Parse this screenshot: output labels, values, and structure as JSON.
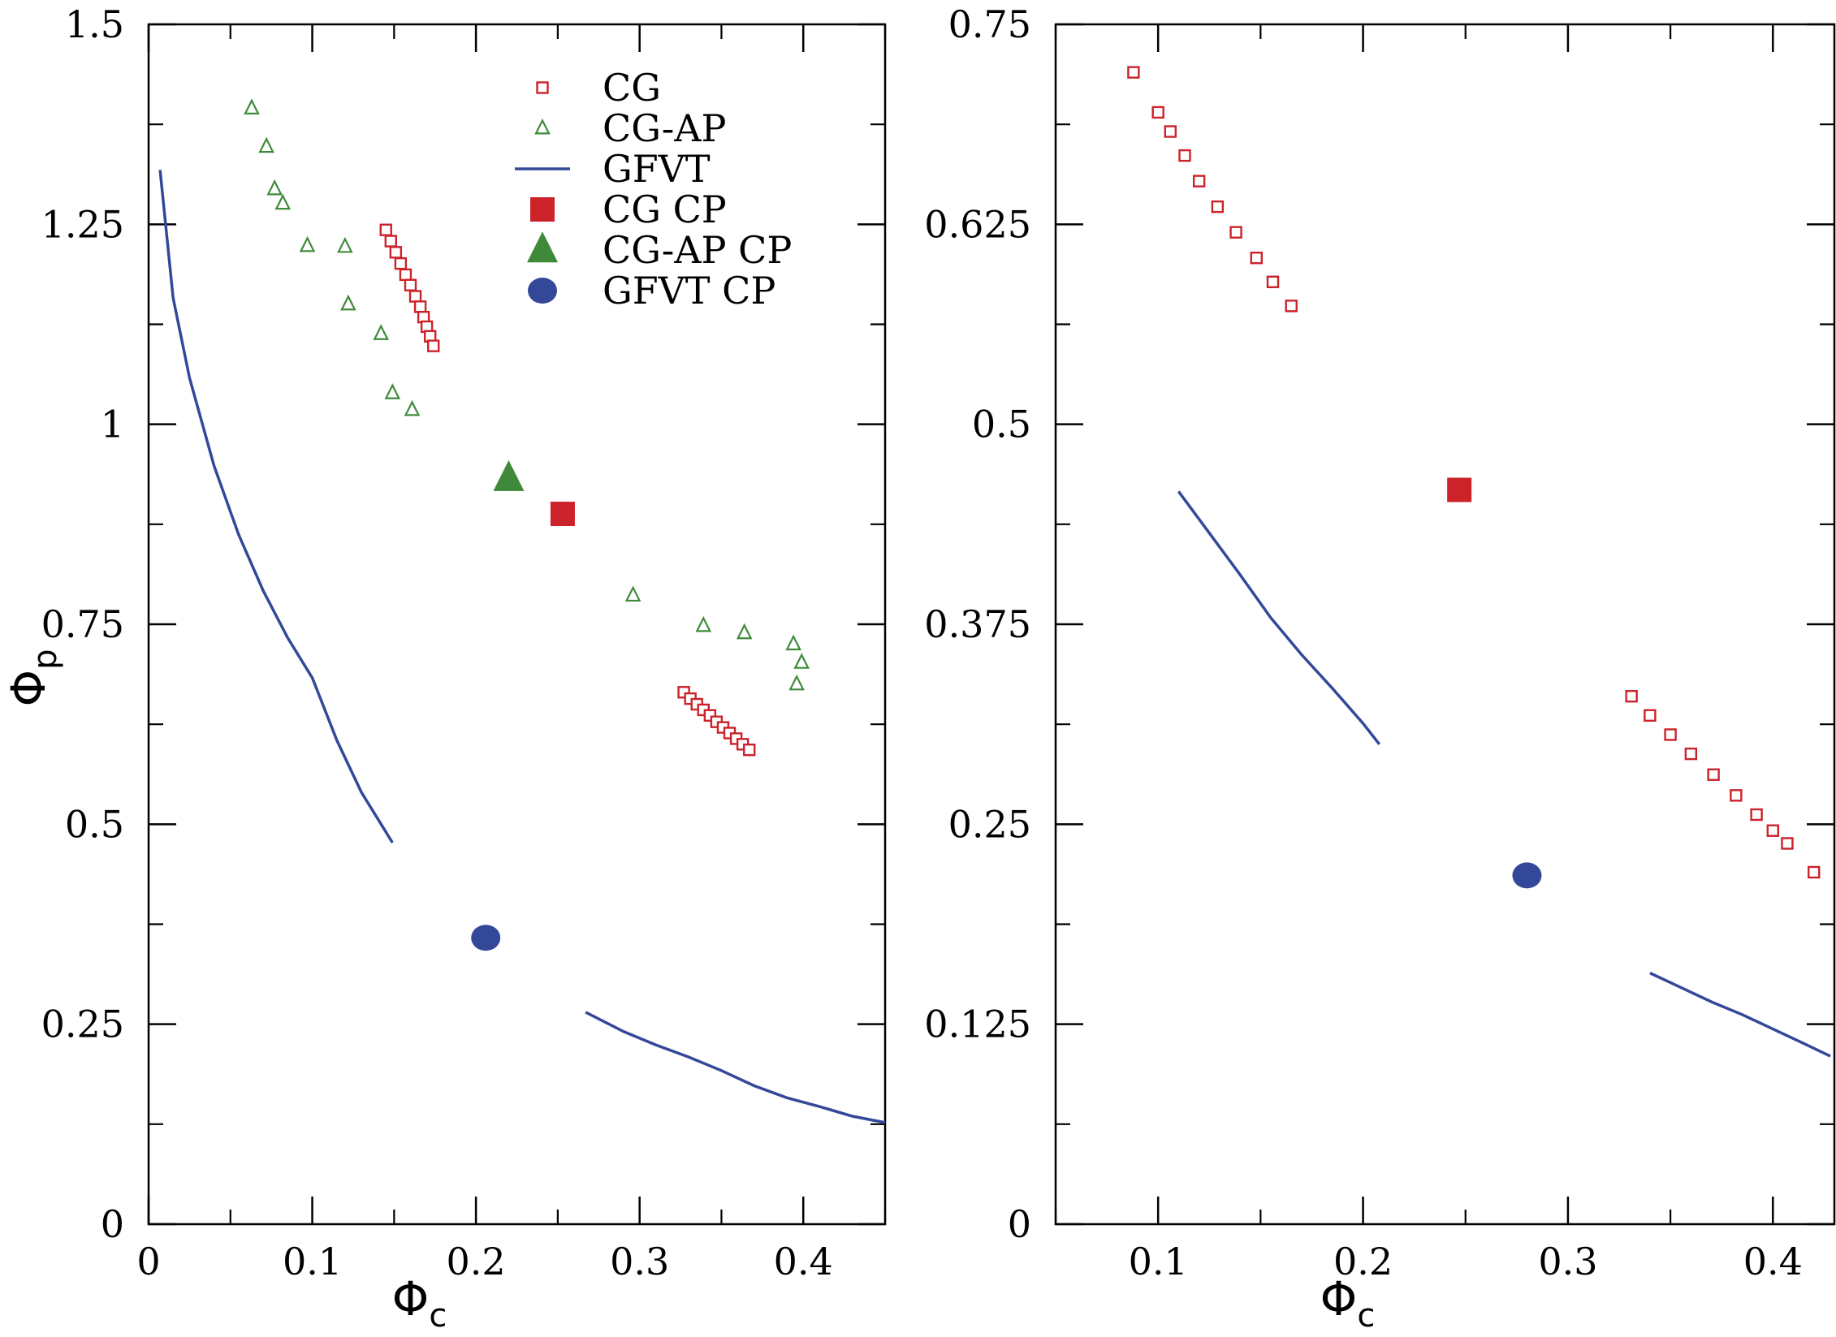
{
  "chart_data": [
    {
      "type": "scatter",
      "title": "",
      "xlabel": "Φc",
      "ylabel": "Φp",
      "xlim": [
        0,
        0.45
      ],
      "ylim": [
        0,
        1.5
      ],
      "xticks": [
        0,
        0.1,
        0.2,
        0.3,
        0.4
      ],
      "xtick_labels": [
        "0",
        "0.1",
        "0.2",
        "0.3",
        "0.4"
      ],
      "yticks": [
        0,
        0.25,
        0.5,
        0.75,
        1,
        1.25,
        1.5
      ],
      "ytick_labels": [
        "0",
        "0.25",
        "0.5",
        "0.75",
        "1",
        "1.25",
        "1.5"
      ],
      "legend": {
        "position": "top-center",
        "entries": [
          {
            "label": "CG",
            "marker": "open-square",
            "color": "#cc2229"
          },
          {
            "label": "CG-AP",
            "marker": "open-triangle",
            "color": "#3f8a3a"
          },
          {
            "label": "GFVT",
            "marker": "line",
            "color": "#34489a"
          },
          {
            "label": "CG CP",
            "marker": "filled-square",
            "color": "#cc2229"
          },
          {
            "label": "CG-AP CP",
            "marker": "filled-triangle",
            "color": "#3f8a3a"
          },
          {
            "label": "GFVT CP",
            "marker": "filled-circle",
            "color": "#34489a"
          }
        ]
      },
      "series": [
        {
          "name": "CG",
          "marker": "open-square",
          "color": "#cc2229",
          "points": [
            [
              0.145,
              1.243
            ],
            [
              0.148,
              1.229
            ],
            [
              0.151,
              1.215
            ],
            [
              0.154,
              1.201
            ],
            [
              0.157,
              1.187
            ],
            [
              0.16,
              1.174
            ],
            [
              0.163,
              1.16
            ],
            [
              0.166,
              1.147
            ],
            [
              0.168,
              1.134
            ],
            [
              0.17,
              1.122
            ],
            [
              0.172,
              1.11
            ],
            [
              0.174,
              1.098
            ],
            [
              0.327,
              0.665
            ],
            [
              0.331,
              0.657
            ],
            [
              0.335,
              0.65
            ],
            [
              0.339,
              0.643
            ],
            [
              0.343,
              0.636
            ],
            [
              0.347,
              0.628
            ],
            [
              0.351,
              0.621
            ],
            [
              0.355,
              0.614
            ],
            [
              0.359,
              0.607
            ],
            [
              0.363,
              0.6
            ],
            [
              0.367,
              0.593
            ]
          ]
        },
        {
          "name": "CG-AP",
          "marker": "open-triangle",
          "color": "#3f8a3a",
          "points": [
            [
              0.063,
              1.395
            ],
            [
              0.072,
              1.347
            ],
            [
              0.077,
              1.294
            ],
            [
              0.082,
              1.276
            ],
            [
              0.097,
              1.223
            ],
            [
              0.12,
              1.222
            ],
            [
              0.122,
              1.15
            ],
            [
              0.142,
              1.113
            ],
            [
              0.149,
              1.039
            ],
            [
              0.161,
              1.018
            ],
            [
              0.296,
              0.786
            ],
            [
              0.339,
              0.748
            ],
            [
              0.364,
              0.739
            ],
            [
              0.394,
              0.725
            ],
            [
              0.399,
              0.702
            ],
            [
              0.396,
              0.675
            ]
          ]
        },
        {
          "name": "GFVT",
          "marker": "line",
          "color": "#34489a",
          "segments": [
            [
              [
                0.007,
                1.318
              ],
              [
                0.015,
                1.158
              ],
              [
                0.025,
                1.058
              ],
              [
                0.04,
                0.948
              ],
              [
                0.055,
                0.862
              ],
              [
                0.07,
                0.792
              ],
              [
                0.085,
                0.733
              ],
              [
                0.1,
                0.683
              ],
              [
                0.115,
                0.605
              ],
              [
                0.13,
                0.54
              ],
              [
                0.149,
                0.477
              ]
            ],
            [
              [
                0.267,
                0.265
              ],
              [
                0.29,
                0.241
              ],
              [
                0.31,
                0.224
              ],
              [
                0.33,
                0.209
              ],
              [
                0.35,
                0.192
              ],
              [
                0.37,
                0.173
              ],
              [
                0.39,
                0.158
              ],
              [
                0.41,
                0.147
              ],
              [
                0.43,
                0.135
              ],
              [
                0.45,
                0.127
              ]
            ]
          ]
        },
        {
          "name": "CG CP",
          "marker": "filled-square",
          "color": "#cc2229",
          "points": [
            [
              0.253,
              0.888
            ]
          ]
        },
        {
          "name": "CG-AP CP",
          "marker": "filled-triangle",
          "color": "#3f8a3a",
          "points": [
            [
              0.22,
              0.932
            ]
          ]
        },
        {
          "name": "GFVT CP",
          "marker": "filled-circle",
          "color": "#34489a",
          "points": [
            [
              0.206,
              0.358
            ]
          ]
        }
      ]
    },
    {
      "type": "scatter",
      "title": "",
      "xlabel": "Φc",
      "ylabel": "",
      "xlim": [
        0.05,
        0.43
      ],
      "ylim": [
        0,
        0.75
      ],
      "xticks": [
        0.1,
        0.2,
        0.3,
        0.4
      ],
      "xtick_labels": [
        "0.1",
        "0.2",
        "0.3",
        "0.4"
      ],
      "yticks": [
        0,
        0.125,
        0.25,
        0.375,
        0.5,
        0.625,
        0.75
      ],
      "ytick_labels": [
        "0",
        "0.125",
        "0.25",
        "0.375",
        "0.5",
        "0.625",
        "0.75"
      ],
      "series": [
        {
          "name": "CG",
          "marker": "open-square",
          "color": "#cc2229",
          "points": [
            [
              0.088,
              0.72
            ],
            [
              0.1,
              0.695
            ],
            [
              0.106,
              0.683
            ],
            [
              0.113,
              0.668
            ],
            [
              0.12,
              0.652
            ],
            [
              0.129,
              0.636
            ],
            [
              0.138,
              0.62
            ],
            [
              0.148,
              0.604
            ],
            [
              0.156,
              0.589
            ],
            [
              0.165,
              0.574
            ],
            [
              0.331,
              0.33
            ],
            [
              0.34,
              0.318
            ],
            [
              0.35,
              0.306
            ],
            [
              0.36,
              0.294
            ],
            [
              0.371,
              0.281
            ],
            [
              0.382,
              0.268
            ],
            [
              0.392,
              0.256
            ],
            [
              0.4,
              0.246
            ],
            [
              0.407,
              0.238
            ],
            [
              0.42,
              0.22
            ]
          ]
        },
        {
          "name": "GFVT",
          "marker": "line",
          "color": "#34489a",
          "segments": [
            [
              [
                0.11,
                0.458
              ],
              [
                0.125,
                0.432
              ],
              [
                0.14,
                0.406
              ],
              [
                0.155,
                0.379
              ],
              [
                0.17,
                0.356
              ],
              [
                0.185,
                0.335
              ],
              [
                0.2,
                0.313
              ],
              [
                0.208,
                0.3
              ]
            ],
            [
              [
                0.34,
                0.157
              ],
              [
                0.355,
                0.148
              ],
              [
                0.37,
                0.139
              ],
              [
                0.385,
                0.131
              ],
              [
                0.4,
                0.122
              ],
              [
                0.415,
                0.113
              ],
              [
                0.428,
                0.105
              ]
            ]
          ]
        },
        {
          "name": "CG CP",
          "marker": "filled-square",
          "color": "#cc2229",
          "points": [
            [
              0.247,
              0.459
            ]
          ]
        },
        {
          "name": "GFVT CP",
          "marker": "filled-circle",
          "color": "#34489a",
          "points": [
            [
              0.28,
              0.218
            ]
          ]
        }
      ]
    }
  ]
}
